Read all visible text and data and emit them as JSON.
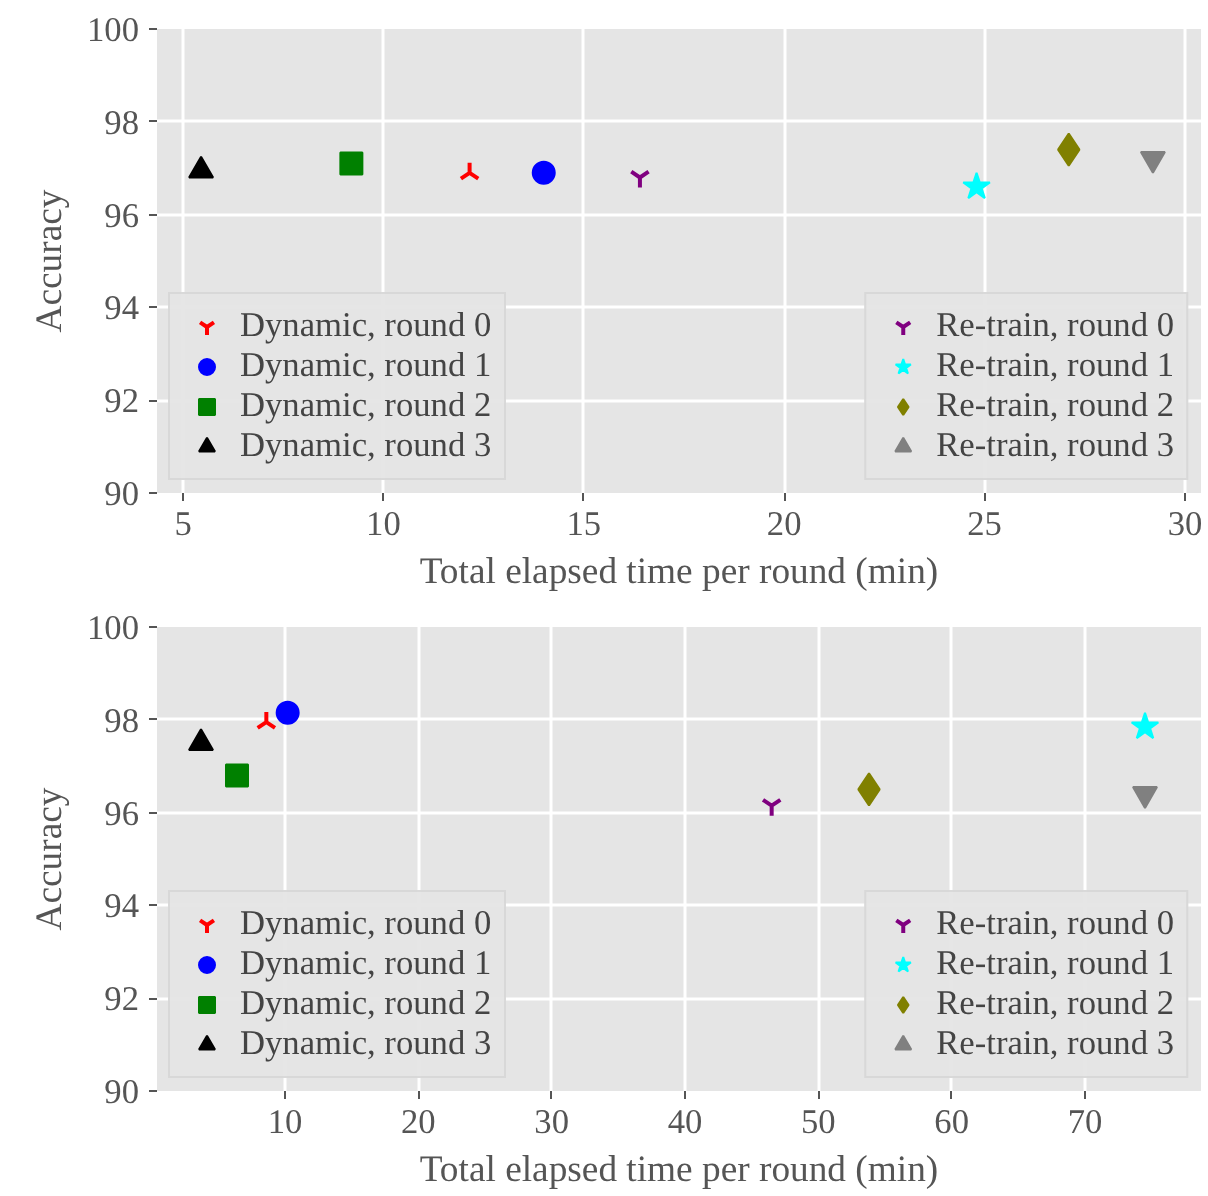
{
  "chart_data": [
    {
      "type": "scatter",
      "xlabel": "Total elapsed time per round (min)",
      "ylabel": "Accuracy",
      "xlim": [
        4.35,
        30.4
      ],
      "ylim": [
        90,
        100
      ],
      "xticks": [
        5,
        10,
        15,
        20,
        25,
        30
      ],
      "yticks": [
        90,
        92,
        94,
        96,
        98,
        100
      ],
      "grid": true,
      "legend": "bottom",
      "series": [
        {
          "name": "Dynamic, round 0",
          "color": "#ff0000",
          "marker": "cross",
          "x": [
            12.15
          ],
          "values": [
            96.9
          ]
        },
        {
          "name": "Dynamic, round 1",
          "color": "#0000ff",
          "marker": "circle",
          "x": [
            14.0
          ],
          "values": [
            96.9
          ]
        },
        {
          "name": "Dynamic, round 2",
          "color": "#008000",
          "marker": "square",
          "x": [
            9.2
          ],
          "values": [
            97.1
          ]
        },
        {
          "name": "Dynamic, round 3",
          "color": "#000000",
          "marker": "triangle",
          "x": [
            5.45
          ],
          "values": [
            96.95
          ]
        },
        {
          "name": "Re-train, round 0",
          "color": "#800080",
          "marker": "cross",
          "x": [
            16.4
          ],
          "values": [
            96.8
          ]
        },
        {
          "name": "Re-train, round 1",
          "color": "#00ffff",
          "marker": "star",
          "x": [
            24.8
          ],
          "values": [
            96.6
          ]
        },
        {
          "name": "Re-train, round 2",
          "color": "#808000",
          "marker": "diamond",
          "x": [
            27.1
          ],
          "values": [
            97.4
          ]
        },
        {
          "name": "Re-train, round 3",
          "color": "#808080",
          "marker": "triangle",
          "x": [
            29.2
          ],
          "values": [
            97.2
          ]
        }
      ]
    },
    {
      "type": "scatter",
      "xlabel": "Total elapsed time per round (min)",
      "ylabel": "Accuracy",
      "xlim": [
        0.4,
        78.7
      ],
      "ylim": [
        90,
        100
      ],
      "xticks": [
        10,
        20,
        30,
        40,
        50,
        60,
        70
      ],
      "yticks": [
        90,
        92,
        94,
        96,
        98,
        100
      ],
      "grid": true,
      "legend": "bottom",
      "series": [
        {
          "name": "Dynamic, round 0",
          "color": "#ff0000",
          "marker": "cross",
          "x": [
            8.6
          ],
          "values": [
            97.95
          ]
        },
        {
          "name": "Dynamic, round 1",
          "color": "#0000ff",
          "marker": "circle",
          "x": [
            10.2
          ],
          "values": [
            98.15
          ]
        },
        {
          "name": "Dynamic, round 2",
          "color": "#008000",
          "marker": "square",
          "x": [
            6.4
          ],
          "values": [
            96.8
          ]
        },
        {
          "name": "Dynamic, round 3",
          "color": "#000000",
          "marker": "triangle",
          "x": [
            3.7
          ],
          "values": [
            97.5
          ]
        },
        {
          "name": "Re-train, round 0",
          "color": "#800080",
          "marker": "cross",
          "x": [
            46.5
          ],
          "values": [
            96.15
          ]
        },
        {
          "name": "Re-train, round 1",
          "color": "#00ffff",
          "marker": "star",
          "x": [
            74.5
          ],
          "values": [
            97.85
          ]
        },
        {
          "name": "Re-train, round 2",
          "color": "#808000",
          "marker": "diamond",
          "x": [
            53.8
          ],
          "values": [
            96.5
          ]
        },
        {
          "name": "Re-train, round 3",
          "color": "#808080",
          "marker": "triangle",
          "x": [
            74.5
          ],
          "values": [
            96.4
          ]
        }
      ]
    }
  ]
}
